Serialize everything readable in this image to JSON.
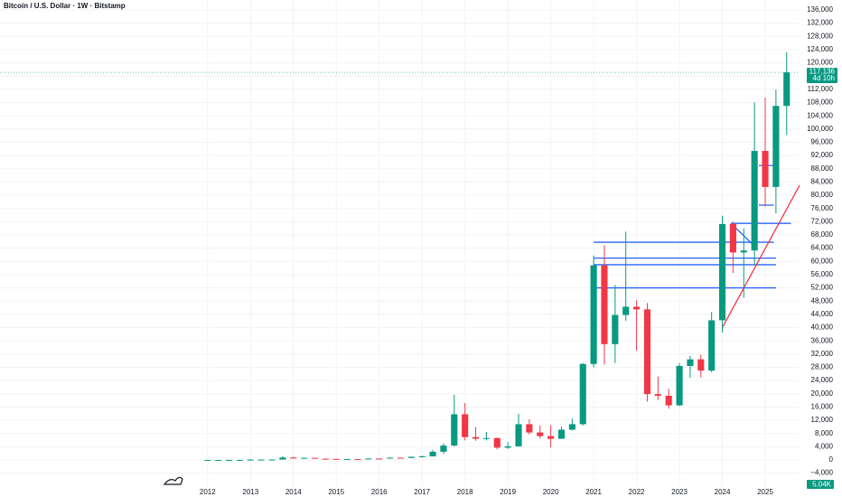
{
  "chart_data": {
    "type": "candlestick",
    "title": "Bitcoin / U.S. Dollar · 1W · Bitstamp",
    "up_color": "#089981",
    "down_color": "#f23645",
    "grid": true,
    "xlim": [
      2007.16,
      2025.8
    ],
    "xticks": [
      2012,
      2013,
      2014,
      2015,
      2016,
      2017,
      2018,
      2019,
      2020,
      2021,
      2022,
      2023,
      2024,
      2025
    ],
    "ylim": [
      -11200,
      139000
    ],
    "yticks": [
      {
        "value": -4000,
        "label": "−4,000"
      },
      0,
      {
        "value": 4000,
        "label": "4,000"
      },
      {
        "value": 8000,
        "label": "8,000"
      },
      {
        "value": 12000,
        "label": "12,000"
      },
      {
        "value": 16000,
        "label": "16,000"
      },
      {
        "value": 20000,
        "label": "20,000"
      },
      {
        "value": 24000,
        "label": "24,000"
      },
      {
        "value": 28000,
        "label": "28,000"
      },
      {
        "value": 32000,
        "label": "32,000"
      },
      {
        "value": 36000,
        "label": "36,000"
      },
      {
        "value": 40000,
        "label": "40,000"
      },
      {
        "value": 44000,
        "label": "44,000"
      },
      {
        "value": 48000,
        "label": "48,000"
      },
      {
        "value": 52000,
        "label": "52,000"
      },
      {
        "value": 56000,
        "label": "56,000"
      },
      {
        "value": 60000,
        "label": "60,000"
      },
      {
        "value": 64000,
        "label": "64,000"
      },
      {
        "value": 68000,
        "label": "68,000"
      },
      {
        "value": 72000,
        "label": "72,000"
      },
      {
        "value": 76000,
        "label": "76,000"
      },
      {
        "value": 80000,
        "label": "80,000"
      },
      {
        "value": 84000,
        "label": "84,000"
      },
      {
        "value": 88000,
        "label": "88,000"
      },
      {
        "value": 92000,
        "label": "92,000"
      },
      {
        "value": 96000,
        "label": "96,000"
      },
      {
        "value": 100000,
        "label": "100,000"
      },
      {
        "value": 104000,
        "label": "104,000"
      },
      {
        "value": 108000,
        "label": "108,000"
      },
      {
        "value": 112000,
        "label": "112,000"
      },
      {
        "value": 116000,
        "label": "116,000"
      },
      {
        "value": 120000,
        "label": "120,000"
      },
      {
        "value": 124000,
        "label": "124,000"
      },
      {
        "value": 128000,
        "label": "128,000"
      },
      {
        "value": 132000,
        "label": "132,000"
      },
      {
        "value": 136000,
        "label": "136,000"
      }
    ],
    "x": [
      2012.0,
      2012.25,
      2012.5,
      2012.75,
      2013.0,
      2013.25,
      2013.5,
      2013.75,
      2014.0,
      2014.25,
      2014.5,
      2014.75,
      2015.0,
      2015.25,
      2015.5,
      2015.75,
      2016.0,
      2016.25,
      2016.5,
      2016.75,
      2017.0,
      2017.25,
      2017.5,
      2017.75,
      2018.0,
      2018.25,
      2018.5,
      2018.75,
      2019.0,
      2019.25,
      2019.5,
      2019.75,
      2020.0,
      2020.25,
      2020.5,
      2020.75,
      2021.0,
      2021.25,
      2021.5,
      2021.75,
      2022.0,
      2022.25,
      2022.5,
      2022.75,
      2023.0,
      2023.25,
      2023.5,
      2023.75,
      2024.0,
      2024.25,
      2024.5,
      2024.75,
      2025.0,
      2025.25,
      2025.5
    ],
    "open": [
      5,
      5,
      6,
      12,
      13,
      94,
      97,
      125,
      730,
      445,
      640,
      385,
      320,
      245,
      263,
      236,
      430,
      416,
      673,
      608,
      963,
      1070,
      2480,
      4340,
      13800,
      6900,
      6400,
      6600,
      3700,
      4100,
      10800,
      8300,
      7200,
      6400,
      9150,
      10800,
      29000,
      58800,
      35000,
      43800,
      46300,
      45500,
      19900,
      19400,
      16500,
      28400,
      30400,
      27000,
      42200,
      71300,
      62700,
      63300,
      93400,
      82500,
      107000
    ],
    "high": [
      7,
      7,
      15,
      14,
      266,
      130,
      200,
      1163,
      1000,
      680,
      650,
      460,
      320,
      300,
      315,
      500,
      440,
      780,
      680,
      980,
      1350,
      3000,
      5000,
      19700,
      17200,
      9900,
      8500,
      6800,
      5400,
      13900,
      12300,
      10400,
      10500,
      10000,
      12500,
      29300,
      61800,
      64900,
      52900,
      69000,
      48200,
      47400,
      25200,
      21500,
      29200,
      31400,
      31800,
      44700,
      73800,
      72000,
      70000,
      108000,
      109500,
      111900,
      123200
    ],
    "low": [
      4,
      4,
      6,
      10,
      13,
      65,
      66,
      120,
      420,
      420,
      380,
      300,
      170,
      220,
      200,
      236,
      360,
      416,
      530,
      600,
      780,
      1070,
      1830,
      4100,
      5900,
      5800,
      5900,
      3200,
      3350,
      4100,
      7700,
      6500,
      3800,
      6400,
      8900,
      10400,
      28000,
      28800,
      29300,
      42000,
      33000,
      17600,
      18100,
      15500,
      16300,
      24800,
      24900,
      26500,
      38500,
      56500,
      49000,
      58900,
      76600,
      74500,
      98200
    ],
    "close": [
      5,
      6,
      12,
      13,
      94,
      97,
      125,
      730,
      445,
      640,
      385,
      320,
      245,
      263,
      236,
      430,
      416,
      673,
      608,
      963,
      1070,
      2480,
      4340,
      13800,
      6900,
      6400,
      6600,
      3700,
      4100,
      10800,
      8300,
      7200,
      6400,
      9150,
      10800,
      29000,
      58800,
      35000,
      43800,
      46300,
      45500,
      19900,
      19400,
      16500,
      28400,
      30400,
      27000,
      42200,
      71300,
      62700,
      63300,
      93400,
      82500,
      107000,
      117136
    ],
    "price_label": "117,136",
    "countdown": "4d 10h",
    "volume_label": "5.04K",
    "drawings": [
      {
        "color": "#2962ff",
        "x": [
          2021.0,
          2025.2
        ],
        "y": [
          65800,
          65800
        ]
      },
      {
        "color": "#2962ff",
        "x": [
          2021.0,
          2025.25
        ],
        "y": [
          61000,
          61000
        ]
      },
      {
        "color": "#2962ff",
        "x": [
          2021.0,
          2025.25
        ],
        "y": [
          59000,
          59000
        ]
      },
      {
        "color": "#2962ff",
        "x": [
          2020.95,
          2025.25
        ],
        "y": [
          52000,
          52000
        ]
      },
      {
        "color": "#2962ff",
        "x": [
          2024.2,
          2025.6
        ],
        "y": [
          71500,
          71500
        ]
      },
      {
        "color": "#2962ff",
        "x": [
          2024.2,
          2024.8
        ],
        "y": [
          71500,
          64000
        ]
      },
      {
        "color": "#2962ff",
        "x": [
          2024.85,
          2025.2
        ],
        "y": [
          89000,
          89000
        ]
      },
      {
        "color": "#2962ff",
        "x": [
          2024.85,
          2025.2
        ],
        "y": [
          77000,
          77000
        ]
      },
      {
        "color": "#f23645",
        "x": [
          2024.0,
          2025.8
        ],
        "y": [
          40000,
          83000
        ]
      }
    ]
  }
}
